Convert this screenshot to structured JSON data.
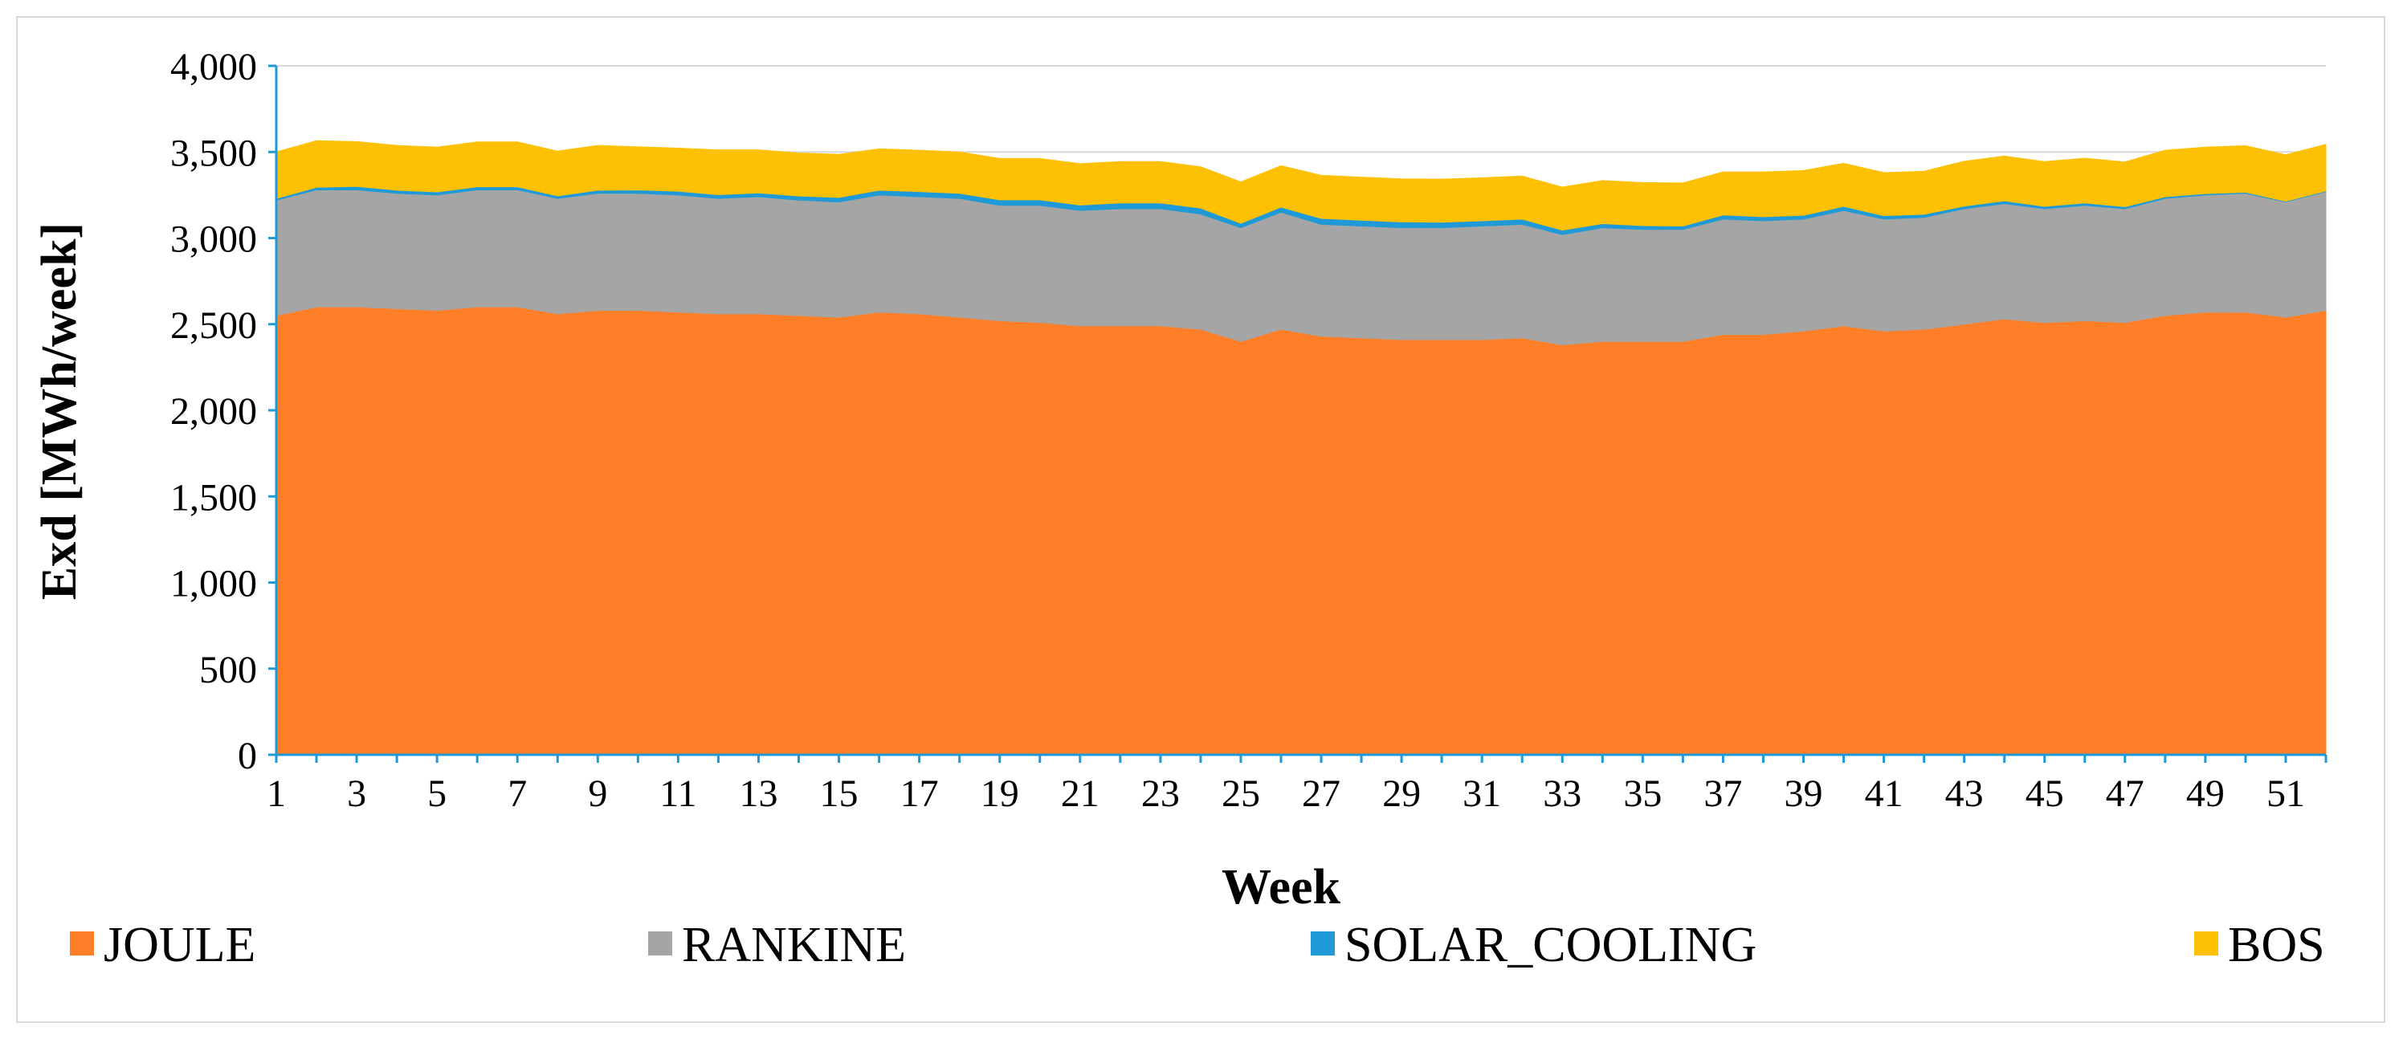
{
  "chart_data": {
    "type": "area",
    "stacked": true,
    "title": "",
    "xlabel": "Week",
    "ylabel": "Exd [MWh/week]",
    "ylim": [
      0,
      4000
    ],
    "yticks": [
      0,
      500,
      1000,
      1500,
      2000,
      2500,
      3000,
      3500,
      4000
    ],
    "ytick_labels": [
      "0",
      "500",
      "1,000",
      "1,500",
      "2,000",
      "2,500",
      "3,000",
      "3,500",
      "4,000"
    ],
    "x": [
      1,
      2,
      3,
      4,
      5,
      6,
      7,
      8,
      9,
      10,
      11,
      12,
      13,
      14,
      15,
      16,
      17,
      18,
      19,
      20,
      21,
      22,
      23,
      24,
      25,
      26,
      27,
      28,
      29,
      30,
      31,
      32,
      33,
      34,
      35,
      36,
      37,
      38,
      39,
      40,
      41,
      42,
      43,
      44,
      45,
      46,
      47,
      48,
      49,
      50,
      51,
      52
    ],
    "xtick_labels": [
      "1",
      "3",
      "5",
      "7",
      "9",
      "11",
      "13",
      "15",
      "17",
      "19",
      "21",
      "23",
      "25",
      "27",
      "29",
      "31",
      "33",
      "35",
      "37",
      "39",
      "41",
      "43",
      "45",
      "47",
      "49",
      "51"
    ],
    "grid": "horizontal",
    "legend_position": "bottom",
    "series": [
      {
        "name": "JOULE",
        "color": "#fe7f27",
        "values": [
          2550,
          2600,
          2600,
          2590,
          2580,
          2600,
          2600,
          2560,
          2580,
          2580,
          2570,
          2560,
          2560,
          2550,
          2540,
          2570,
          2560,
          2540,
          2520,
          2510,
          2490,
          2490,
          2490,
          2470,
          2400,
          2470,
          2430,
          2420,
          2410,
          2410,
          2410,
          2420,
          2380,
          2400,
          2400,
          2400,
          2440,
          2440,
          2460,
          2490,
          2460,
          2470,
          2500,
          2530,
          2510,
          2520,
          2510,
          2550,
          2570,
          2570,
          2540,
          2580
        ]
      },
      {
        "name": "RANKINE",
        "color": "#a5a5a5",
        "values": [
          670,
          680,
          680,
          670,
          670,
          680,
          680,
          670,
          680,
          680,
          680,
          670,
          680,
          670,
          670,
          680,
          680,
          690,
          670,
          680,
          670,
          680,
          680,
          670,
          660,
          680,
          650,
          650,
          650,
          650,
          660,
          660,
          640,
          660,
          650,
          650,
          670,
          660,
          650,
          670,
          650,
          650,
          670,
          670,
          660,
          670,
          660,
          680,
          680,
          690,
          670,
          690
        ]
      },
      {
        "name": "SOLAR_COOLING",
        "color": "#1f9ad7",
        "values": [
          10,
          15,
          20,
          18,
          18,
          18,
          18,
          15,
          18,
          20,
          22,
          22,
          22,
          24,
          26,
          28,
          30,
          30,
          32,
          32,
          32,
          34,
          34,
          34,
          26,
          30,
          34,
          34,
          34,
          32,
          30,
          30,
          26,
          24,
          22,
          20,
          24,
          24,
          22,
          24,
          20,
          18,
          16,
          16,
          14,
          14,
          12,
          10,
          8,
          6,
          4,
          4
        ]
      },
      {
        "name": "BOS",
        "color": "#fec002",
        "values": [
          270,
          270,
          260,
          260,
          260,
          260,
          260,
          260,
          260,
          250,
          250,
          260,
          250,
          250,
          250,
          240,
          240,
          240,
          240,
          240,
          240,
          240,
          240,
          240,
          240,
          240,
          250,
          250,
          250,
          250,
          250,
          250,
          250,
          250,
          250,
          250,
          250,
          260,
          260,
          250,
          250,
          250,
          260,
          260,
          260,
          260,
          260,
          270,
          270,
          270,
          270,
          270
        ]
      }
    ]
  }
}
